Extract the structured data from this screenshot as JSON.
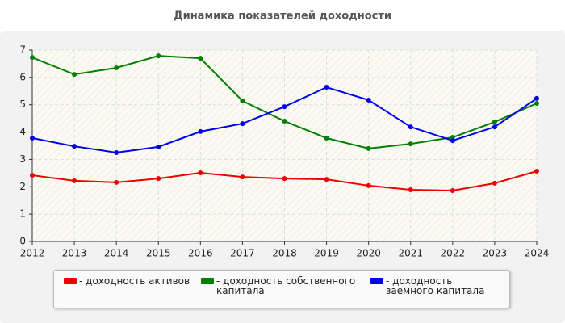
{
  "chart_data": {
    "type": "line",
    "title": "Динамика показателей доходности",
    "x": [
      2012,
      2013,
      2014,
      2015,
      2016,
      2017,
      2018,
      2019,
      2020,
      2021,
      2022,
      2023,
      2024
    ],
    "xlim": [
      2012,
      2024
    ],
    "xticks": [
      2012,
      2013,
      2014,
      2015,
      2016,
      2017,
      2018,
      2019,
      2020,
      2021,
      2022,
      2023,
      2024
    ],
    "ylim": [
      0,
      7
    ],
    "yticks": [
      0,
      1,
      2,
      3,
      4,
      5,
      6,
      7
    ],
    "grid": true,
    "legend": "bottom",
    "series": [
      {
        "name": "- доходность активов",
        "color": "#ee0000",
        "values": [
          2.42,
          2.22,
          2.16,
          2.3,
          2.51,
          2.36,
          2.3,
          2.27,
          2.04,
          1.89,
          1.86,
          2.13,
          2.57
        ]
      },
      {
        "name": "- доходность собственного капитала",
        "color": "#008000",
        "values": [
          6.73,
          6.11,
          6.35,
          6.79,
          6.7,
          5.14,
          4.4,
          3.78,
          3.4,
          3.57,
          3.81,
          4.37,
          5.05
        ]
      },
      {
        "name": "- доходность заемного капитала",
        "color": "#0000ee",
        "values": [
          3.78,
          3.48,
          3.25,
          3.46,
          4.02,
          4.31,
          4.93,
          5.64,
          5.17,
          4.19,
          3.69,
          4.19,
          5.23
        ]
      }
    ]
  }
}
